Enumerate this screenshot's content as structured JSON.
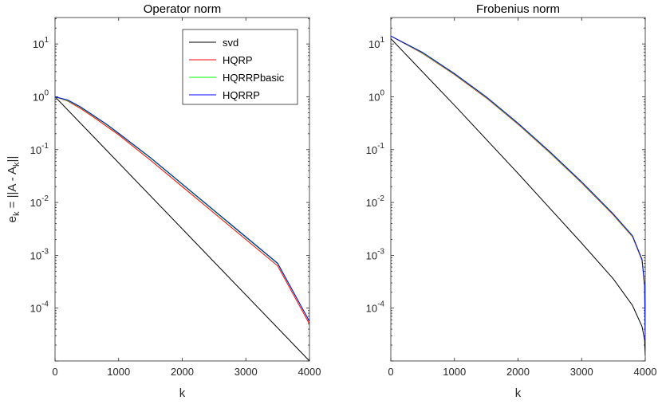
{
  "chart_data": [
    {
      "type": "line",
      "title": "Operator norm",
      "xlabel": "k",
      "ylabel": {
        "parts": [
          "e",
          "k",
          " = ||A - A",
          "k",
          "||"
        ]
      },
      "xlim": [
        0,
        4000
      ],
      "ylim_log10": [
        -5,
        1.5
      ],
      "yscale": "log",
      "xticks": [
        0,
        1000,
        2000,
        3000,
        4000
      ],
      "xtick_labels": [
        "0",
        "1000",
        "2000",
        "3000",
        "4000"
      ],
      "yticks_exp": [
        1,
        0,
        -1,
        -2,
        -3,
        -4
      ],
      "ytick_labels": [
        [
          "10",
          "1"
        ],
        [
          "10",
          "0"
        ],
        [
          "10",
          "-1"
        ],
        [
          "10",
          "-2"
        ],
        [
          "10",
          "-3"
        ],
        [
          "10",
          "-4"
        ]
      ],
      "legend": {
        "placement": "top-right",
        "entries": [
          "svd",
          "HQRP",
          "HQRRPbasic",
          "HQRRP"
        ]
      },
      "series": [
        {
          "name": "svd",
          "color": "#000000",
          "x": [
            0,
            4000
          ],
          "y_log10": [
            0.0,
            -5.0
          ]
        },
        {
          "name": "HQRP",
          "color": "#ff0000",
          "x": [
            0,
            200,
            400,
            600,
            800,
            1000,
            1500,
            2000,
            2500,
            3000,
            3500,
            4000
          ],
          "y_log10": [
            0.0,
            -0.08,
            -0.22,
            -0.38,
            -0.55,
            -0.72,
            -1.2,
            -1.7,
            -2.2,
            -2.7,
            -3.2,
            -4.3
          ]
        },
        {
          "name": "HQRRPbasic",
          "color": "#00ff00",
          "x": [
            0,
            200,
            400,
            600,
            800,
            1000,
            1500,
            2000,
            2500,
            3000,
            3500,
            4000
          ],
          "y_log10": [
            0.0,
            -0.07,
            -0.2,
            -0.36,
            -0.52,
            -0.7,
            -1.16,
            -1.66,
            -2.16,
            -2.66,
            -3.16,
            -4.25
          ]
        },
        {
          "name": "HQRRP",
          "color": "#0000ff",
          "x": [
            0,
            200,
            400,
            600,
            800,
            1000,
            1500,
            2000,
            2500,
            3000,
            3500,
            4000
          ],
          "y_log10": [
            0.0,
            -0.06,
            -0.19,
            -0.35,
            -0.51,
            -0.69,
            -1.15,
            -1.65,
            -2.15,
            -2.65,
            -3.15,
            -4.25
          ]
        }
      ]
    },
    {
      "type": "line",
      "title": "Frobenius norm",
      "xlabel": "k",
      "xlim": [
        0,
        4000
      ],
      "ylim_log10": [
        -5,
        1.5
      ],
      "yscale": "log",
      "xticks": [
        0,
        1000,
        2000,
        3000,
        4000
      ],
      "xtick_labels": [
        "0",
        "1000",
        "2000",
        "3000",
        "4000"
      ],
      "yticks_exp": [
        1,
        0,
        -1,
        -2,
        -3,
        -4
      ],
      "ytick_labels": [
        [
          "10",
          "1"
        ],
        [
          "10",
          "0"
        ],
        [
          "10",
          "-1"
        ],
        [
          "10",
          "-2"
        ],
        [
          "10",
          "-3"
        ],
        [
          "10",
          "-4"
        ]
      ],
      "series": [
        {
          "name": "svd",
          "color": "#000000",
          "x": [
            0,
            1000,
            2000,
            3000,
            3500,
            3800,
            3950,
            3990,
            4000
          ],
          "y_log10": [
            1.1,
            -0.16,
            -1.45,
            -2.77,
            -3.45,
            -3.95,
            -4.35,
            -4.6,
            -4.9
          ]
        },
        {
          "name": "HQRP",
          "color": "#ff0000",
          "x": [
            0,
            500,
            1000,
            1500,
            2000,
            2500,
            3000,
            3500,
            3800,
            3950,
            3990,
            4000
          ],
          "y_log10": [
            1.15,
            0.82,
            0.42,
            -0.02,
            -0.52,
            -1.06,
            -1.63,
            -2.24,
            -2.65,
            -3.1,
            -3.6,
            -4.6
          ]
        },
        {
          "name": "HQRRPbasic",
          "color": "#00ff00",
          "x": [
            0,
            500,
            1000,
            1500,
            2000,
            2500,
            3000,
            3500,
            3800,
            3950,
            3990,
            4000
          ],
          "y_log10": [
            1.15,
            0.83,
            0.43,
            -0.01,
            -0.51,
            -1.05,
            -1.62,
            -2.23,
            -2.64,
            -3.09,
            -3.58,
            -4.6
          ]
        },
        {
          "name": "HQRRP",
          "color": "#0000ff",
          "x": [
            0,
            500,
            1000,
            1500,
            2000,
            2500,
            3000,
            3500,
            3800,
            3950,
            3990,
            4000
          ],
          "y_log10": [
            1.15,
            0.84,
            0.44,
            0.0,
            -0.5,
            -1.04,
            -1.61,
            -2.22,
            -2.63,
            -3.08,
            -3.57,
            -4.6
          ]
        }
      ]
    }
  ]
}
